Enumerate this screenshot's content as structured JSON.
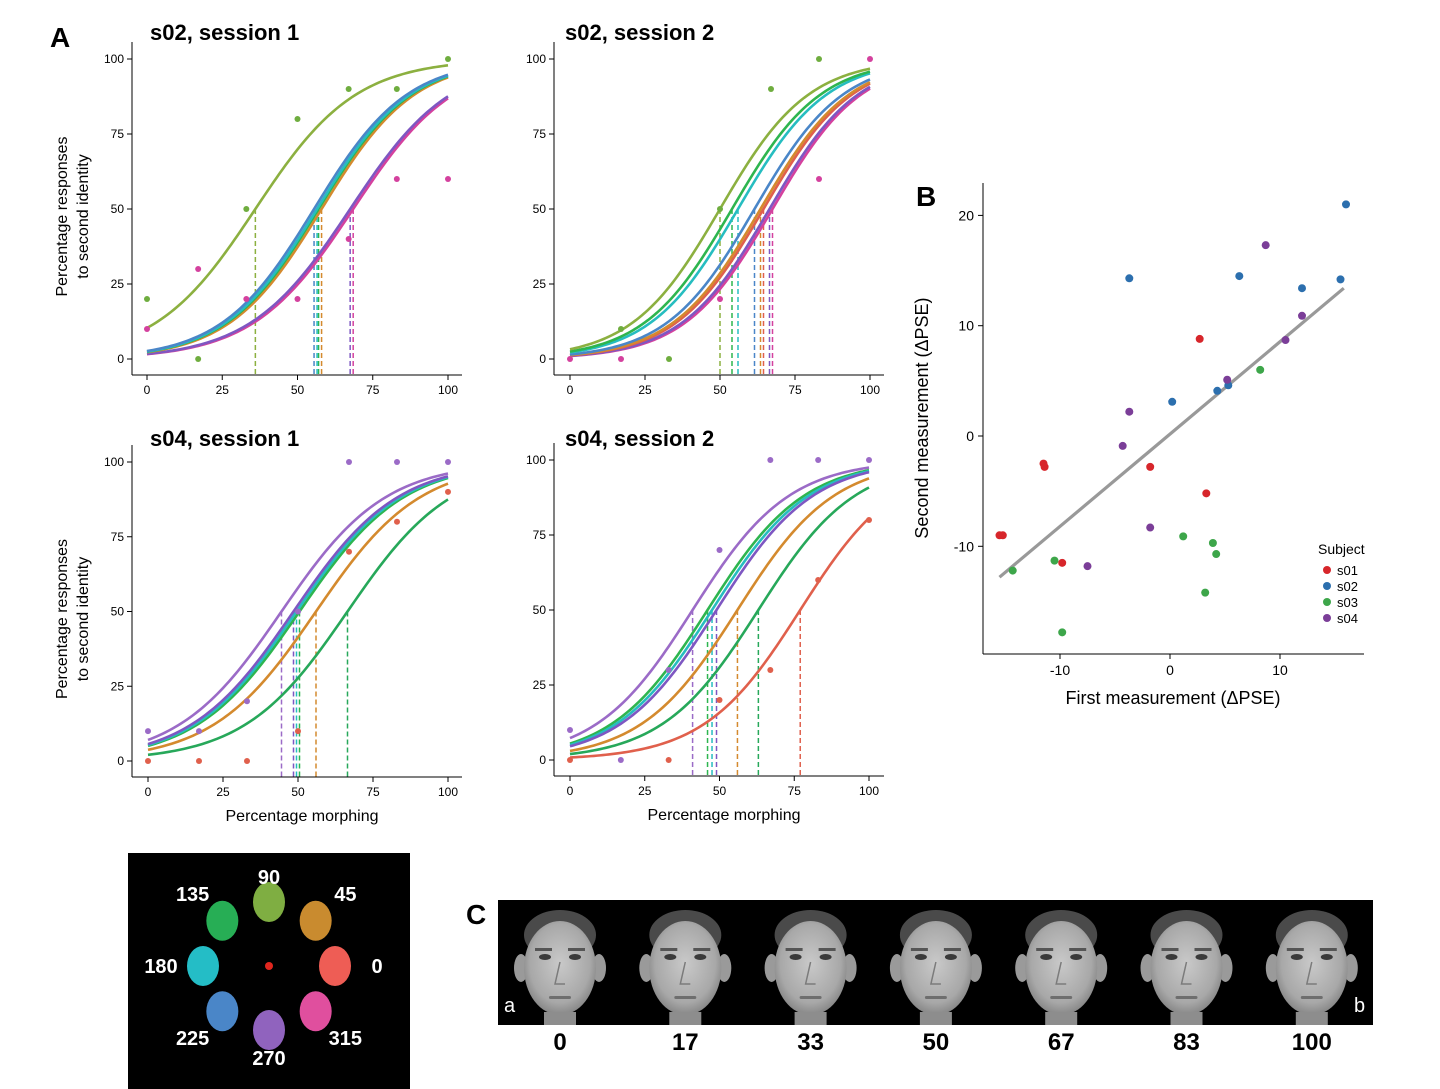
{
  "panel_labels": {
    "a": "A",
    "b": "B",
    "c": "C"
  },
  "chart_data": [
    {
      "id": "s02s1",
      "type": "line",
      "title": "s02, session 1",
      "xlabel": "",
      "ylabel_line1": "Percentage responses",
      "ylabel_line2": "to second identity",
      "xlim": [
        0,
        100
      ],
      "ylim": [
        0,
        100
      ],
      "xticks": [
        "0",
        "25",
        "50",
        "75",
        "100"
      ],
      "yticks": [
        "0",
        "25",
        "50",
        "75",
        "100"
      ],
      "curves": [
        {
          "color": "#D4419E",
          "pse": 68.5,
          "slope": 0.06
        },
        {
          "color": "#7E57C2",
          "pse": 67.5,
          "slope": 0.06
        },
        {
          "color": "#8CB040",
          "pse": 36,
          "slope": 0.06
        },
        {
          "color": "#D48A2E",
          "pse": 58,
          "slope": 0.065
        },
        {
          "color": "#2EB54F",
          "pse": 57,
          "slope": 0.065
        },
        {
          "color": "#26BDC0",
          "pse": 56.5,
          "slope": 0.065
        },
        {
          "color": "#4A86C8",
          "pse": 55.5,
          "slope": 0.065
        }
      ],
      "points": [
        {
          "x": 0,
          "y": 20,
          "color": "#6FAD3F"
        },
        {
          "x": 0,
          "y": 10,
          "color": "#D4419E"
        },
        {
          "x": 17,
          "y": 30,
          "color": "#D4419E"
        },
        {
          "x": 17,
          "y": 0,
          "color": "#6FAD3F"
        },
        {
          "x": 33,
          "y": 50,
          "color": "#6FAD3F"
        },
        {
          "x": 33,
          "y": 20,
          "color": "#D4419E"
        },
        {
          "x": 50,
          "y": 80,
          "color": "#6FAD3F"
        },
        {
          "x": 50,
          "y": 20,
          "color": "#D4419E"
        },
        {
          "x": 67,
          "y": 90,
          "color": "#6FAD3F"
        },
        {
          "x": 67,
          "y": 40,
          "color": "#D4419E"
        },
        {
          "x": 83,
          "y": 90,
          "color": "#6FAD3F"
        },
        {
          "x": 83,
          "y": 60,
          "color": "#D4419E"
        },
        {
          "x": 100,
          "y": 100,
          "color": "#6FAD3F"
        },
        {
          "x": 100,
          "y": 60,
          "color": "#D4419E"
        }
      ]
    },
    {
      "id": "s02s2",
      "type": "line",
      "title": "s02, session 2",
      "xlabel": "",
      "ylabel_line1": "",
      "ylabel_line2": "",
      "xlim": [
        0,
        100
      ],
      "ylim": [
        0,
        100
      ],
      "xticks": [
        "0",
        "25",
        "50",
        "75",
        "100"
      ],
      "yticks": [
        "0",
        "25",
        "50",
        "75",
        "100"
      ],
      "curves": [
        {
          "color": "#D4419E",
          "pse": 67.5,
          "slope": 0.068
        },
        {
          "color": "#7E57C2",
          "pse": 66.5,
          "slope": 0.068
        },
        {
          "color": "#E0604C",
          "pse": 64.5,
          "slope": 0.068
        },
        {
          "color": "#D48A2E",
          "pse": 63.5,
          "slope": 0.068
        },
        {
          "color": "#4A86C8",
          "pse": 61.5,
          "slope": 0.068
        },
        {
          "color": "#26BDC0",
          "pse": 56,
          "slope": 0.068
        },
        {
          "color": "#2EB54F",
          "pse": 54,
          "slope": 0.068
        },
        {
          "color": "#8CB040",
          "pse": 50,
          "slope": 0.068
        }
      ],
      "points": [
        {
          "x": 0,
          "y": 0,
          "color": "#D4419E"
        },
        {
          "x": 17,
          "y": 10,
          "color": "#6FAD3F"
        },
        {
          "x": 17,
          "y": 0,
          "color": "#D4419E"
        },
        {
          "x": 33,
          "y": 0,
          "color": "#6FAD3F"
        },
        {
          "x": 50,
          "y": 50,
          "color": "#6FAD3F"
        },
        {
          "x": 50,
          "y": 20,
          "color": "#D4419E"
        },
        {
          "x": 67,
          "y": 90,
          "color": "#6FAD3F"
        },
        {
          "x": 83,
          "y": 100,
          "color": "#6FAD3F"
        },
        {
          "x": 83,
          "y": 60,
          "color": "#D4419E"
        },
        {
          "x": 100,
          "y": 100,
          "color": "#D4419E"
        }
      ]
    },
    {
      "id": "s04s1",
      "type": "line",
      "title": "s04, session 1",
      "xlabel": "Percentage morphing",
      "ylabel_line1": "Percentage responses",
      "ylabel_line2": "to second identity",
      "xlim": [
        0,
        100
      ],
      "ylim": [
        0,
        100
      ],
      "xticks": [
        "0",
        "25",
        "50",
        "75",
        "100"
      ],
      "yticks": [
        "0",
        "25",
        "50",
        "75",
        "100"
      ],
      "curves": [
        {
          "color": "#27A85A",
          "pse": 66.5,
          "slope": 0.058
        },
        {
          "color": "#D48A2E",
          "pse": 56,
          "slope": 0.058
        },
        {
          "color": "#2EB54F",
          "pse": 50.5,
          "slope": 0.058
        },
        {
          "color": "#26BDC0",
          "pse": 49.5,
          "slope": 0.058
        },
        {
          "color": "#7E57C2",
          "pse": 48.5,
          "slope": 0.058
        },
        {
          "color": "#9B6BC7",
          "pse": 44.5,
          "slope": 0.058
        }
      ],
      "points": [
        {
          "x": 0,
          "y": 10,
          "color": "#9B6BC7"
        },
        {
          "x": 0,
          "y": 0,
          "color": "#E0604C"
        },
        {
          "x": 17,
          "y": 10,
          "color": "#9B6BC7"
        },
        {
          "x": 17,
          "y": 0,
          "color": "#E0604C"
        },
        {
          "x": 33,
          "y": 20,
          "color": "#9B6BC7"
        },
        {
          "x": 33,
          "y": 0,
          "color": "#E0604C"
        },
        {
          "x": 50,
          "y": 50,
          "color": "#9B6BC7"
        },
        {
          "x": 50,
          "y": 10,
          "color": "#E0604C"
        },
        {
          "x": 67,
          "y": 100,
          "color": "#9B6BC7"
        },
        {
          "x": 67,
          "y": 70,
          "color": "#E0604C"
        },
        {
          "x": 83,
          "y": 100,
          "color": "#9B6BC7"
        },
        {
          "x": 83,
          "y": 80,
          "color": "#E0604C"
        },
        {
          "x": 100,
          "y": 100,
          "color": "#9B6BC7"
        },
        {
          "x": 100,
          "y": 90,
          "color": "#E0604C"
        }
      ]
    },
    {
      "id": "s04s2",
      "type": "line",
      "title": "s04, session 2",
      "xlabel": "Percentage morphing",
      "ylabel_line1": "",
      "ylabel_line2": "",
      "xlim": [
        0,
        100
      ],
      "ylim": [
        0,
        100
      ],
      "xticks": [
        "0",
        "25",
        "50",
        "75",
        "100"
      ],
      "yticks": [
        "0",
        "25",
        "50",
        "75",
        "100"
      ],
      "curves": [
        {
          "color": "#E0604C",
          "pse": 77,
          "slope": 0.062
        },
        {
          "color": "#27A85A",
          "pse": 63,
          "slope": 0.062
        },
        {
          "color": "#D48A2E",
          "pse": 56,
          "slope": 0.062
        },
        {
          "color": "#2EB54F",
          "pse": 46,
          "slope": 0.062
        },
        {
          "color": "#26BDC0",
          "pse": 47.5,
          "slope": 0.062
        },
        {
          "color": "#7E57C2",
          "pse": 49,
          "slope": 0.062
        },
        {
          "color": "#9B6BC7",
          "pse": 41,
          "slope": 0.062
        }
      ],
      "points": [
        {
          "x": 0,
          "y": 10,
          "color": "#9B6BC7"
        },
        {
          "x": 0,
          "y": 0,
          "color": "#E0604C"
        },
        {
          "x": 17,
          "y": 0,
          "color": "#9B6BC7"
        },
        {
          "x": 33,
          "y": 30,
          "color": "#9B6BC7"
        },
        {
          "x": 33,
          "y": 0,
          "color": "#E0604C"
        },
        {
          "x": 50,
          "y": 70,
          "color": "#9B6BC7"
        },
        {
          "x": 50,
          "y": 20,
          "color": "#E0604C"
        },
        {
          "x": 67,
          "y": 100,
          "color": "#9B6BC7"
        },
        {
          "x": 67,
          "y": 30,
          "color": "#E0604C"
        },
        {
          "x": 83,
          "y": 100,
          "color": "#9B6BC7"
        },
        {
          "x": 83,
          "y": 60,
          "color": "#E0604C"
        },
        {
          "x": 100,
          "y": 100,
          "color": "#9B6BC7"
        },
        {
          "x": 100,
          "y": 80,
          "color": "#E0604C"
        }
      ]
    },
    {
      "id": "scatterB",
      "type": "scatter",
      "xlabel": "First measurement (ΔPSE)",
      "ylabel": "Second measurement (ΔPSE)",
      "xlim": [
        -17.5,
        17
      ],
      "ylim": [
        -19.5,
        23
      ],
      "xticks": [
        {
          "v": -10,
          "t": "-10"
        },
        {
          "v": 0,
          "t": "0"
        },
        {
          "v": 10,
          "t": "10"
        }
      ],
      "yticks": [
        {
          "v": -10,
          "t": "-10"
        },
        {
          "v": 0,
          "t": "0"
        },
        {
          "v": 10,
          "t": "10"
        },
        {
          "v": 20,
          "t": "20"
        }
      ],
      "fit_line": {
        "x1": -15.5,
        "y1": -12.8,
        "x2": 15.8,
        "y2": 13.4,
        "color": "#999999"
      },
      "legend": {
        "title": "Subject",
        "position": "right",
        "entries": [
          {
            "label": "s01",
            "color": "#D7262B"
          },
          {
            "label": "s02",
            "color": "#2C6FAE"
          },
          {
            "label": "s03",
            "color": "#3DA64A"
          },
          {
            "label": "s04",
            "color": "#7B3E98"
          }
        ]
      },
      "series": [
        {
          "name": "s01",
          "color": "#D7262B",
          "points": [
            [
              -15.5,
              -9
            ],
            [
              -15.2,
              -9
            ],
            [
              -11.5,
              -2.5
            ],
            [
              -11.4,
              -2.8
            ],
            [
              -9.8,
              -11.5
            ],
            [
              -1.8,
              -2.8
            ],
            [
              2.7,
              8.8
            ],
            [
              3.3,
              -5.2
            ]
          ]
        },
        {
          "name": "s02",
          "color": "#2C6FAE",
          "points": [
            [
              -3.7,
              14.3
            ],
            [
              0.2,
              3.1
            ],
            [
              4.3,
              4.1
            ],
            [
              5.3,
              4.6
            ],
            [
              6.3,
              14.5
            ],
            [
              12,
              13.4
            ],
            [
              15.5,
              14.2
            ],
            [
              16,
              21
            ]
          ]
        },
        {
          "name": "s03",
          "color": "#3DA64A",
          "points": [
            [
              -14.3,
              -12.2
            ],
            [
              -10.5,
              -11.3
            ],
            [
              -9.8,
              -17.8
            ],
            [
              1.2,
              -9.1
            ],
            [
              3.2,
              -14.2
            ],
            [
              3.9,
              -9.7
            ],
            [
              4.2,
              -10.7
            ],
            [
              8.2,
              6
            ]
          ]
        },
        {
          "name": "s04",
          "color": "#7B3E98",
          "points": [
            [
              -7.5,
              -11.8
            ],
            [
              -4.3,
              -0.9
            ],
            [
              -3.7,
              2.2
            ],
            [
              -1.8,
              -8.3
            ],
            [
              5.2,
              5.1
            ],
            [
              8.7,
              17.3
            ],
            [
              10.5,
              8.7
            ],
            [
              12,
              10.9
            ]
          ]
        }
      ]
    }
  ],
  "dial": {
    "items": [
      {
        "angle": 0,
        "label": "0",
        "color": "#EE5D55"
      },
      {
        "angle": 45,
        "label": "45",
        "color": "#C98B2F"
      },
      {
        "angle": 90,
        "label": "90",
        "color": "#7FAE42"
      },
      {
        "angle": 135,
        "label": "135",
        "color": "#27AE55"
      },
      {
        "angle": 180,
        "label": "180",
        "color": "#24BDC6"
      },
      {
        "angle": 225,
        "label": "225",
        "color": "#4A86C8"
      },
      {
        "angle": 270,
        "label": "270",
        "color": "#9063BE"
      },
      {
        "angle": 315,
        "label": "315",
        "color": "#E04F9E"
      }
    ],
    "fixation_color": "#E0261E"
  },
  "faces": {
    "values": [
      "0",
      "17",
      "33",
      "50",
      "67",
      "83",
      "100"
    ],
    "corner_left": "a",
    "corner_right": "b"
  }
}
